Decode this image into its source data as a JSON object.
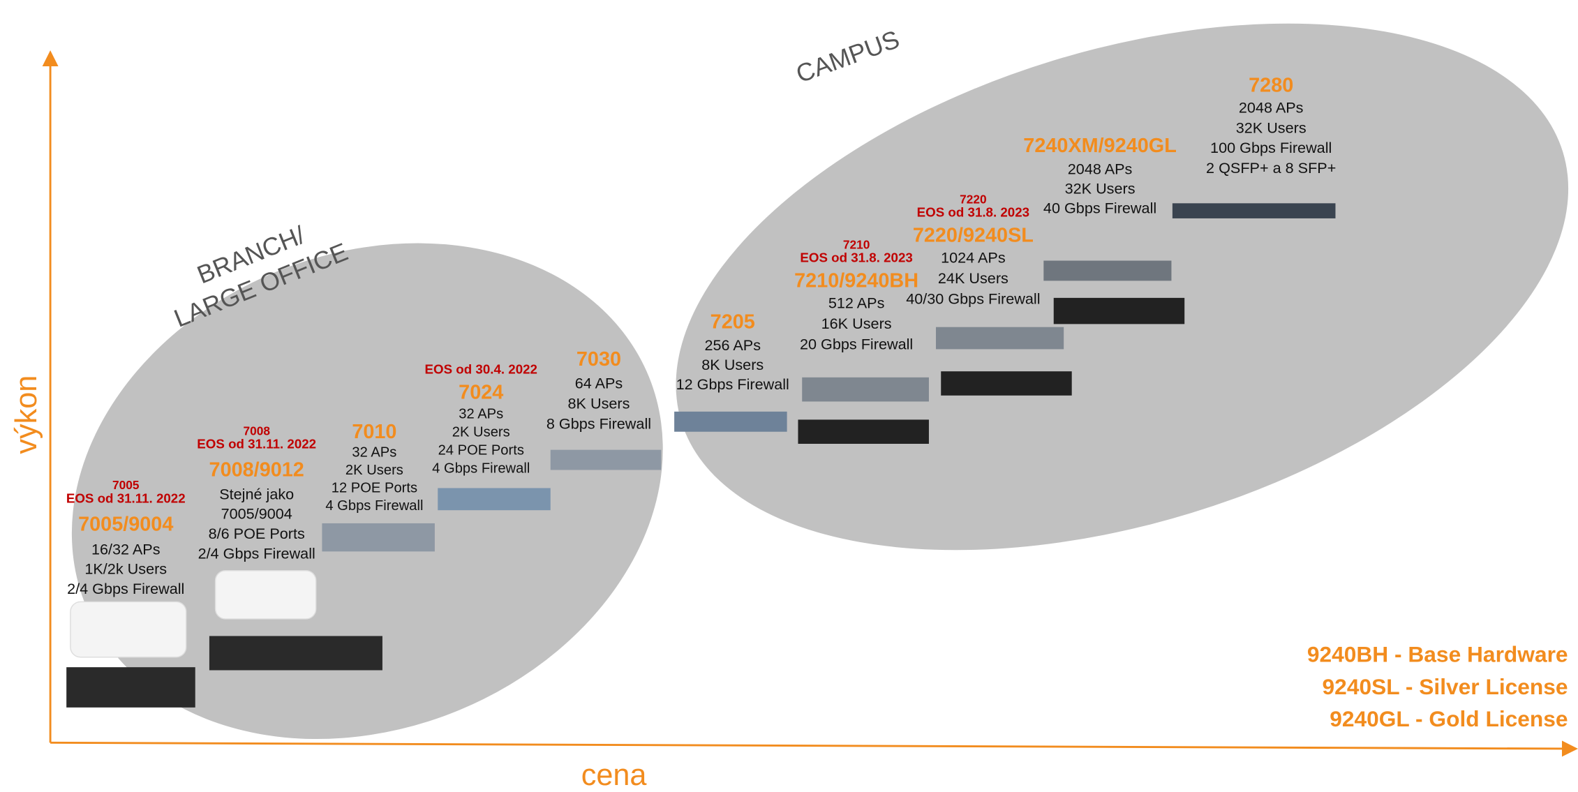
{
  "axes": {
    "y_label": "výkon",
    "x_label": "cena"
  },
  "regions": [
    {
      "lines": [
        "BRANCH/",
        "LARGE OFFICE"
      ]
    },
    {
      "lines": [
        "CAMPUS"
      ]
    }
  ],
  "products": [
    {
      "eos": [
        "7005",
        "EOS od 31.11. 2022"
      ],
      "name": "7005/9004",
      "specs": [
        "16/32 APs",
        "1K/2k Users",
        "2/4 Gbps Firewall"
      ]
    },
    {
      "eos": [
        "7008",
        "EOS od 31.11. 2022"
      ],
      "name": "7008/9012",
      "specs": [
        "Stejné jako",
        "7005/9004",
        "8/6 POE Ports",
        "2/4 Gbps Firewall"
      ]
    },
    {
      "name": "7010",
      "specs": [
        "32 APs",
        "2K Users",
        "12 POE Ports",
        "4 Gbps Firewall"
      ]
    },
    {
      "eos": [
        "EOS od 30.4. 2022"
      ],
      "name": "7024",
      "specs": [
        "32 APs",
        "2K Users",
        "24 POE Ports",
        "4 Gbps Firewall"
      ]
    },
    {
      "name": "7030",
      "specs": [
        "64 APs",
        "8K Users",
        "8 Gbps Firewall"
      ]
    },
    {
      "name": "7205",
      "specs": [
        "256 APs",
        "8K Users",
        "12 Gbps Firewall"
      ]
    },
    {
      "eos": [
        "7210",
        "EOS od 31.8. 2023"
      ],
      "name": "7210/9240BH",
      "specs": [
        "512 APs",
        "16K Users",
        "20 Gbps Firewall"
      ]
    },
    {
      "eos": [
        "7220",
        "EOS od 31.8. 2023"
      ],
      "name": "7220/9240SL",
      "specs": [
        "1024 APs",
        "24K Users",
        "40/30 Gbps Firewall"
      ]
    },
    {
      "name": "7240XM/9240GL",
      "specs": [
        "2048 APs",
        "32K Users",
        "40 Gbps Firewall"
      ]
    },
    {
      "name": "7280",
      "specs": [
        "2048 APs",
        "32K Users",
        "100 Gbps Firewall",
        "2 QSFP+ a 8 SFP+"
      ]
    }
  ],
  "legend": [
    "9240BH - Base Hardware",
    "9240SL - Silver License",
    "9240GL - Gold License"
  ]
}
